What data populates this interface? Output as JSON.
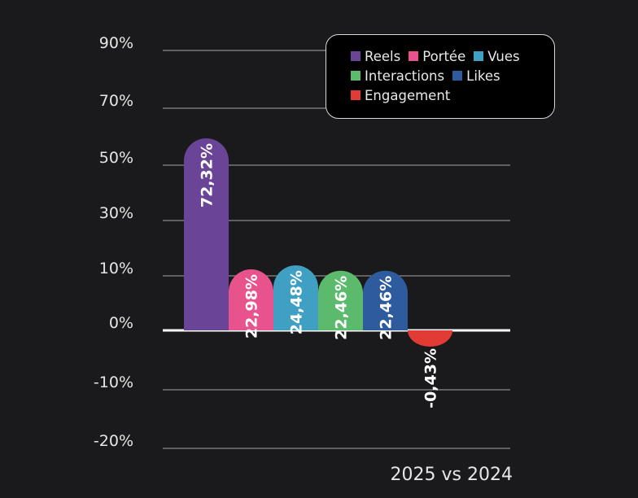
{
  "chart_data": {
    "type": "bar",
    "caption": "2025 vs 2024",
    "y_ticks": [
      "90%",
      "70%",
      "50%",
      "30%",
      "10%",
      "0%",
      "-10%",
      "-20%"
    ],
    "series": [
      {
        "name": "Reels",
        "value": 72.32,
        "label": "72,32%",
        "color": "#6a4597"
      },
      {
        "name": "Portée",
        "value": 22.98,
        "label": "22,98%",
        "color": "#e8538e"
      },
      {
        "name": "Vues",
        "value": 24.48,
        "label": "24,48%",
        "color": "#3fa0c4"
      },
      {
        "name": "Interactions",
        "value": 22.46,
        "label": "22,46%",
        "color": "#5cba6c"
      },
      {
        "name": "Likes",
        "value": 22.46,
        "label": "22,46%",
        "color": "#2e5b9e"
      },
      {
        "name": "Engagement",
        "value": -0.43,
        "label": "-0,43%",
        "color": "#e23b36"
      }
    ],
    "legend_position": "top-right"
  }
}
